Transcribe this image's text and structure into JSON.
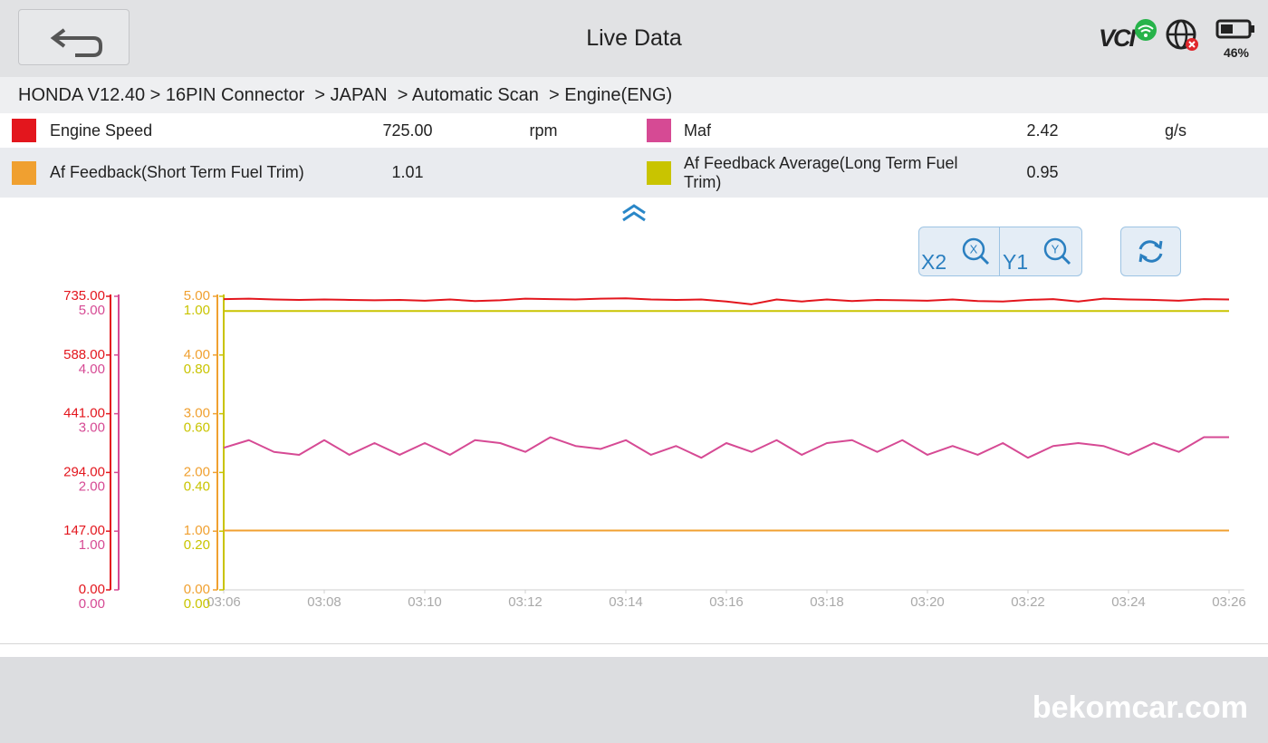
{
  "header": {
    "title": "Live Data",
    "vci": "VCI",
    "battery": "46%"
  },
  "breadcrumb": "HONDA V12.40 > 16PIN Connector  > JAPAN  > Automatic Scan  > Engine(ENG)",
  "parameters": [
    {
      "name": "Engine Speed",
      "value": "725.00",
      "unit": "rpm"
    },
    {
      "name": "Maf",
      "value": "2.42",
      "unit": "g/s"
    },
    {
      "name": "Af Feedback(Short Term Fuel Trim)",
      "value": "1.01"
    },
    {
      "name": "Af Feedback Average(Long Term Fuel Trim)",
      "value": "0.95"
    }
  ],
  "controls": {
    "x_zoom": {
      "label": "X2",
      "icon": "X"
    },
    "y_zoom": {
      "label": "Y1",
      "icon": "Y"
    }
  },
  "watermark": "bekomcar.com",
  "chart_data": {
    "type": "line",
    "x": [
      186,
      186.5,
      187,
      187.5,
      188,
      188.5,
      189,
      189.5,
      190,
      190.5,
      191,
      191.5,
      192,
      192.5,
      193,
      193.5,
      194,
      194.5,
      195,
      195.5,
      196,
      196.5,
      197,
      197.5,
      198,
      198.5,
      199,
      199.5,
      200,
      200.5,
      201,
      201.5,
      202,
      202.5,
      203,
      203.5,
      204,
      204.5,
      205,
      205.5,
      206
    ],
    "xlim": [
      186,
      206.3
    ],
    "xticks": [
      {
        "value": 186,
        "label": "03:06"
      },
      {
        "value": 188,
        "label": "03:08"
      },
      {
        "value": 190,
        "label": "03:10"
      },
      {
        "value": 192,
        "label": "03:12"
      },
      {
        "value": 194,
        "label": "03:14"
      },
      {
        "value": 196,
        "label": "03:16"
      },
      {
        "value": 198,
        "label": "03:18"
      },
      {
        "value": 200,
        "label": "03:20"
      },
      {
        "value": 202,
        "label": "03:22"
      },
      {
        "value": 204,
        "label": "03:24"
      },
      {
        "value": 206,
        "label": "03:26"
      }
    ],
    "series": [
      {
        "color": "#e3161d",
        "ylim": [
          0,
          735
        ],
        "yticks": [
          {
            "value": 0,
            "label": "0.00"
          },
          {
            "value": 147,
            "label": "147.00"
          },
          {
            "value": 294,
            "label": "294.00"
          },
          {
            "value": 441,
            "label": "441.00"
          },
          {
            "value": 588,
            "label": "588.00"
          },
          {
            "value": 735,
            "label": "735.00"
          }
        ],
        "values": [
          728,
          729,
          727,
          726,
          727,
          726,
          725,
          726,
          724,
          727,
          723,
          725,
          729,
          728,
          727,
          729,
          730,
          727,
          726,
          727,
          722,
          715,
          727,
          722,
          727,
          723,
          726,
          725,
          724,
          727,
          723,
          722,
          726,
          728,
          722,
          729,
          727,
          726,
          724,
          728,
          727
        ]
      },
      {
        "color": "#d64a94",
        "ylim": [
          0,
          5
        ],
        "yticks": [
          {
            "value": 0,
            "label": "0.00"
          },
          {
            "value": 1,
            "label": "1.00"
          },
          {
            "value": 2,
            "label": "2.00"
          },
          {
            "value": 3,
            "label": "3.00"
          },
          {
            "value": 4,
            "label": "4.00"
          },
          {
            "value": 5,
            "label": "5.00"
          }
        ],
        "values": [
          2.42,
          2.55,
          2.35,
          2.3,
          2.55,
          2.3,
          2.5,
          2.3,
          2.5,
          2.3,
          2.55,
          2.5,
          2.35,
          2.6,
          2.45,
          2.4,
          2.55,
          2.3,
          2.45,
          2.25,
          2.5,
          2.35,
          2.55,
          2.3,
          2.5,
          2.55,
          2.35,
          2.55,
          2.3,
          2.45,
          2.3,
          2.5,
          2.25,
          2.45,
          2.5,
          2.45,
          2.3,
          2.5,
          2.35,
          2.6,
          2.6
        ]
      },
      {
        "color": "#f0a030",
        "ylim": [
          0,
          5
        ],
        "yticks": [
          {
            "value": 0,
            "label": "0.00"
          },
          {
            "value": 1,
            "label": "1.00"
          },
          {
            "value": 2,
            "label": "2.00"
          },
          {
            "value": 3,
            "label": "3.00"
          },
          {
            "value": 4,
            "label": "4.00"
          },
          {
            "value": 5,
            "label": "5.00"
          }
        ],
        "values": [
          1.01,
          1.01,
          1.01,
          1.01,
          1.01,
          1.01,
          1.01,
          1.01,
          1.01,
          1.01,
          1.01,
          1.01,
          1.01,
          1.01,
          1.01,
          1.01,
          1.01,
          1.01,
          1.01,
          1.01,
          1.01,
          1.01,
          1.01,
          1.01,
          1.01,
          1.01,
          1.01,
          1.01,
          1.01,
          1.01,
          1.01,
          1.01,
          1.01,
          1.01,
          1.01,
          1.01,
          1.01,
          1.01,
          1.01,
          1.01,
          1.01
        ]
      },
      {
        "color": "#c9c400",
        "ylim": [
          0,
          1
        ],
        "yticks": [
          {
            "value": 0,
            "label": "0.00"
          },
          {
            "value": 0.2,
            "label": "0.20"
          },
          {
            "value": 0.4,
            "label": "0.40"
          },
          {
            "value": 0.6,
            "label": "0.60"
          },
          {
            "value": 0.8,
            "label": "0.80"
          },
          {
            "value": 1,
            "label": "1.00"
          }
        ],
        "values": [
          0.95,
          0.95,
          0.95,
          0.95,
          0.95,
          0.95,
          0.95,
          0.95,
          0.95,
          0.95,
          0.95,
          0.95,
          0.95,
          0.95,
          0.95,
          0.95,
          0.95,
          0.95,
          0.95,
          0.95,
          0.95,
          0.95,
          0.95,
          0.95,
          0.95,
          0.95,
          0.95,
          0.95,
          0.95,
          0.95,
          0.95,
          0.95,
          0.95,
          0.95,
          0.95,
          0.95,
          0.95,
          0.95,
          0.95,
          0.95,
          0.95
        ]
      }
    ]
  }
}
